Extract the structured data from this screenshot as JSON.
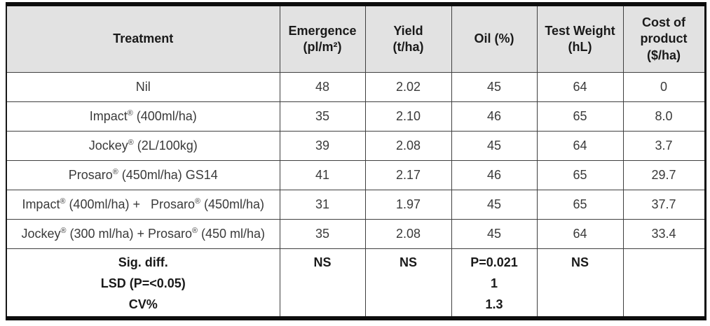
{
  "table": {
    "columns": [
      "Treatment",
      "Emergence\n(pl/m²)",
      "Yield\n(t/ha)",
      "Oil (%)",
      "Test Weight\n(hL)",
      "Cost of\nproduct\n($/ha)"
    ],
    "rows": [
      [
        "Nil",
        "48",
        "2.02",
        "45",
        "64",
        "0"
      ],
      [
        "Impact® (400ml/ha)",
        "35",
        "2.10",
        "46",
        "65",
        "8.0"
      ],
      [
        "Jockey® (2L/100kg)",
        "39",
        "2.08",
        "45",
        "64",
        "3.7"
      ],
      [
        "Prosaro® (450ml/ha) GS14",
        "41",
        "2.17",
        "46",
        "65",
        "29.7"
      ],
      [
        "Impact® (400ml/ha) +   Prosaro® (450ml/ha)",
        "31",
        "1.97",
        "45",
        "65",
        "37.7"
      ],
      [
        "Jockey® (300 ml/ha) + Prosaro® (450 ml/ha)",
        "35",
        "2.08",
        "45",
        "64",
        "33.4"
      ]
    ],
    "footer": [
      "Sig. diff.\nLSD (P=<0.05)\nCV%",
      "NS",
      "NS",
      "P=0.021\n1\n1.3",
      "NS",
      ""
    ],
    "colors": {
      "header_bg": "#e2e2e2",
      "grid_line": "#3f3f3f",
      "frame": "#0d0d0d",
      "body_text": "#3a3a3a",
      "header_text": "#1a1a1a"
    }
  }
}
